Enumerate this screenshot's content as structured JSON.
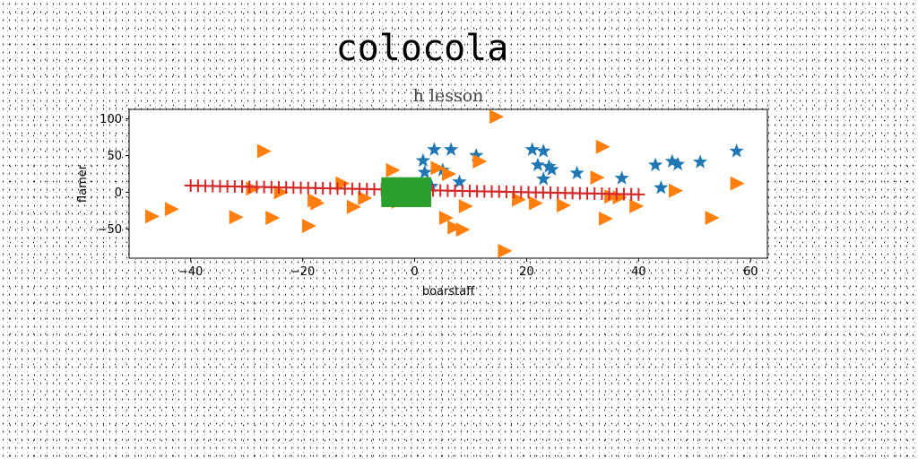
{
  "chart_data": {
    "type": "scatter",
    "suptitle": "colocola",
    "title": "h lesson",
    "xlabel": "boarstaff",
    "ylabel": "flamer",
    "xlim": [
      -51,
      63
    ],
    "ylim": [
      -90,
      113
    ],
    "xticks": [
      -40,
      -20,
      0,
      20,
      40,
      60
    ],
    "yticks": [
      -50,
      0,
      50,
      100
    ],
    "xtick_labels": [
      "−40",
      "−20",
      "0",
      "20",
      "40",
      "60"
    ],
    "ytick_labels": [
      "−50",
      "0",
      "50",
      "100"
    ],
    "grid": false,
    "series": [
      {
        "marker": "star",
        "color": "#1f77b4",
        "points": [
          [
            1.5,
            43
          ],
          [
            3.5,
            58
          ],
          [
            6.5,
            58
          ],
          [
            1.8,
            27
          ],
          [
            5,
            30
          ],
          [
            3,
            8
          ],
          [
            8,
            14
          ],
          [
            11,
            50
          ],
          [
            21,
            58
          ],
          [
            23,
            56
          ],
          [
            22,
            37
          ],
          [
            24,
            35
          ],
          [
            24.5,
            31
          ],
          [
            23,
            18
          ],
          [
            29,
            26
          ],
          [
            37,
            19
          ],
          [
            43,
            37
          ],
          [
            44,
            6
          ],
          [
            46,
            42
          ],
          [
            47,
            38
          ],
          [
            51,
            41
          ],
          [
            57.5,
            56
          ]
        ]
      },
      {
        "marker": "triangle-right",
        "color": "#ff7f0e",
        "points": [
          [
            -47,
            -33
          ],
          [
            -43.5,
            -23
          ],
          [
            -32,
            -34
          ],
          [
            -27,
            56
          ],
          [
            -29,
            5
          ],
          [
            -25.5,
            -35
          ],
          [
            -24,
            0
          ],
          [
            -19,
            -46
          ],
          [
            -18,
            -11
          ],
          [
            -17.5,
            -15
          ],
          [
            -13,
            12
          ],
          [
            -11,
            -20
          ],
          [
            -9,
            -8
          ],
          [
            -4,
            30
          ],
          [
            -3,
            -13
          ],
          [
            4,
            33
          ],
          [
            6,
            25
          ],
          [
            5.5,
            -35
          ],
          [
            7,
            -48
          ],
          [
            8.5,
            -51
          ],
          [
            9,
            -19
          ],
          [
            11.5,
            42
          ],
          [
            14.5,
            103
          ],
          [
            16,
            -80
          ],
          [
            18.5,
            -10
          ],
          [
            21.5,
            -15
          ],
          [
            26.5,
            -18
          ],
          [
            32.5,
            20
          ],
          [
            33.5,
            62
          ],
          [
            34,
            -36
          ],
          [
            35,
            -6
          ],
          [
            36.5,
            -7
          ],
          [
            39.5,
            -19
          ],
          [
            46.5,
            2
          ],
          [
            53,
            -35
          ],
          [
            57.5,
            12
          ]
        ]
      },
      {
        "marker": "plus",
        "color": "#d62728",
        "x_start": -40,
        "x_end": 40,
        "count": 62,
        "y_start": 9,
        "y_end": -3
      },
      {
        "marker": "square",
        "color": "#2ca02c",
        "x_range": [
          -5,
          2
        ],
        "y_range": [
          -13,
          13
        ],
        "count": 40
      }
    ]
  }
}
